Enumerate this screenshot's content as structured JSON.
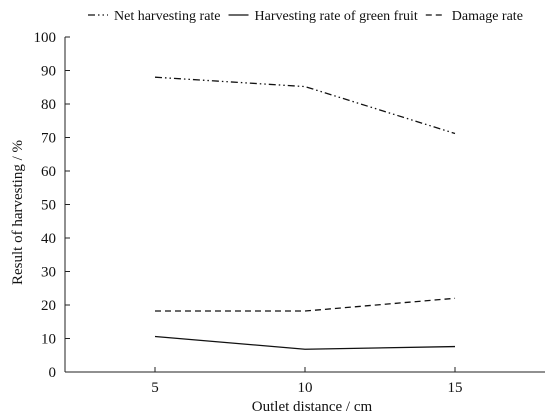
{
  "chart_data": {
    "type": "line",
    "x": [
      5,
      10,
      15
    ],
    "xticks": [
      "5",
      "10",
      "15"
    ],
    "yticks": [
      "0",
      "10",
      "20",
      "30",
      "40",
      "50",
      "60",
      "70",
      "80",
      "90",
      "100"
    ],
    "xlabel": "Outlet distance / cm",
    "ylabel": "Result of harvesting / %",
    "xlim": [
      2,
      18
    ],
    "ylim": [
      0,
      100
    ],
    "grid": false,
    "legend_position": "top",
    "series": [
      {
        "name": "Net harvesting rate",
        "values": [
          88,
          85.2,
          71.2
        ],
        "dash": "dash-dot-dot",
        "legend_sample": "- · ·"
      },
      {
        "name": "Harvesting rate of green fruit",
        "values": [
          10.6,
          6.8,
          7.6
        ],
        "dash": "solid",
        "legend_sample": "—"
      },
      {
        "name": "Damage rate",
        "values": [
          18.2,
          18.2,
          22
        ],
        "dash": "dashed",
        "legend_sample": "- -"
      }
    ]
  }
}
